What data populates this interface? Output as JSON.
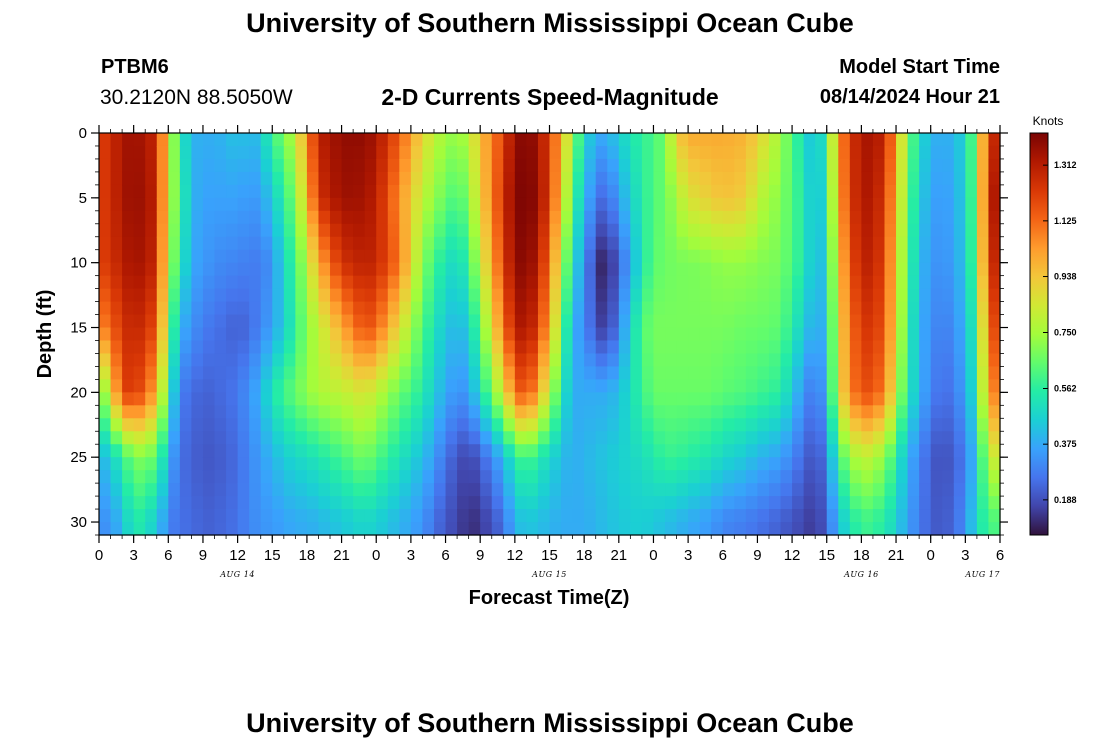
{
  "header": {
    "main_title": "University of Southern Mississippi Ocean Cube",
    "station_id": "PTBM6",
    "coordinates": "30.2120N  88.5050W",
    "chart_title": "2-D Currents Speed-Magnitude",
    "model_start_label": "Model Start Time",
    "model_start_value": "08/14/2024 Hour 21"
  },
  "footer": {
    "title": "University of Southern Mississippi Ocean Cube"
  },
  "chart_data": {
    "type": "heatmap",
    "title": "2-D Currents Speed-Magnitude",
    "xlabel": "Forecast Time(Z)",
    "ylabel": "Depth (ft)",
    "x_tick_labels": [
      "0",
      "3",
      "6",
      "9",
      "12",
      "15",
      "18",
      "21",
      "0",
      "3",
      "6",
      "9",
      "12",
      "15",
      "18",
      "21",
      "0",
      "3",
      "6",
      "9",
      "12",
      "15",
      "18",
      "21",
      "0",
      "3",
      "6"
    ],
    "x_date_labels": [
      {
        "text": "AUG 14",
        "tick_index": 4
      },
      {
        "text": "AUG 15",
        "tick_index": 13
      },
      {
        "text": "AUG 16",
        "tick_index": 22
      },
      {
        "text": "AUG 17",
        "tick_index": 25.5
      }
    ],
    "xlim_hours": [
      0,
      78
    ],
    "y_tick_labels": [
      "0",
      "5",
      "10",
      "15",
      "20",
      "25",
      "30"
    ],
    "ylim_ft": [
      0,
      31
    ],
    "y_inverted": true,
    "colorbar": {
      "units": "Knots",
      "ticks": [
        "0.188",
        "0.375",
        "0.562",
        "0.750",
        "0.938",
        "1.125",
        "1.312"
      ],
      "tick_values": [
        0.188,
        0.375,
        0.562,
        0.75,
        0.938,
        1.125,
        1.312
      ],
      "range": [
        0.07,
        1.42
      ],
      "colors": [
        "#30123b",
        "#4145ab",
        "#4675ed",
        "#39a2fc",
        "#1bcfd4",
        "#24eca6",
        "#61fc6c",
        "#a4fc3b",
        "#d1e834",
        "#f3c63a",
        "#fe9b2d",
        "#f36315",
        "#d93806",
        "#b11901",
        "#7a0403"
      ]
    },
    "speed_model_knots": {
      "description": "Approximate current speed (knots) by forecast hour and depth. Columns are depth (ft) at [0, 5, 10, 15, 20, 25, 30].",
      "depth_ft": [
        0,
        5,
        10,
        15,
        20,
        25,
        30
      ],
      "hours": [
        0,
        2,
        3,
        5,
        6,
        7,
        8,
        9,
        11,
        12,
        13,
        14,
        15,
        16,
        17,
        18,
        19,
        21,
        23,
        24,
        26,
        28,
        29,
        30,
        31,
        32,
        33,
        35,
        36,
        37,
        38,
        39,
        40,
        41,
        42,
        43,
        44,
        45,
        47,
        48,
        49,
        50,
        51,
        53,
        54,
        56,
        57,
        59,
        61,
        62,
        63,
        64,
        66,
        68,
        69,
        70,
        71,
        72,
        73,
        74,
        75,
        76,
        77,
        78
      ],
      "values": [
        [
          1.2,
          1.2,
          1.2,
          1.05,
          0.6,
          0.38,
          0.3
        ],
        [
          1.33,
          1.33,
          1.3,
          1.23,
          1.18,
          0.55,
          0.4
        ],
        [
          1.37,
          1.38,
          1.36,
          1.3,
          1.25,
          0.7,
          0.56
        ],
        [
          1.28,
          1.3,
          1.28,
          1.18,
          1.0,
          0.65,
          0.45
        ],
        [
          0.85,
          0.82,
          0.78,
          0.7,
          0.58,
          0.4,
          0.3
        ],
        [
          0.55,
          0.6,
          0.55,
          0.4,
          0.28,
          0.25,
          0.25
        ],
        [
          0.4,
          0.4,
          0.38,
          0.33,
          0.25,
          0.23,
          0.25
        ],
        [
          0.38,
          0.36,
          0.34,
          0.28,
          0.22,
          0.2,
          0.22
        ],
        [
          0.4,
          0.36,
          0.3,
          0.24,
          0.25,
          0.22,
          0.24
        ],
        [
          0.44,
          0.36,
          0.3,
          0.22,
          0.27,
          0.25,
          0.26
        ],
        [
          0.4,
          0.34,
          0.28,
          0.24,
          0.33,
          0.3,
          0.3
        ],
        [
          0.43,
          0.35,
          0.28,
          0.3,
          0.4,
          0.35,
          0.33
        ],
        [
          0.6,
          0.45,
          0.33,
          0.36,
          0.53,
          0.4,
          0.34
        ],
        [
          0.68,
          0.56,
          0.48,
          0.45,
          0.6,
          0.45,
          0.36
        ],
        [
          0.8,
          0.7,
          0.6,
          0.57,
          0.66,
          0.48,
          0.38
        ],
        [
          1.05,
          0.95,
          0.78,
          0.7,
          0.72,
          0.5,
          0.38
        ],
        [
          1.3,
          1.25,
          1.0,
          0.8,
          0.77,
          0.53,
          0.4
        ],
        [
          1.38,
          1.36,
          1.25,
          1.0,
          0.8,
          0.6,
          0.44
        ],
        [
          1.38,
          1.35,
          1.3,
          1.18,
          0.86,
          0.68,
          0.48
        ],
        [
          1.34,
          1.3,
          1.28,
          1.13,
          0.8,
          0.62,
          0.46
        ],
        [
          1.15,
          1.05,
          1.1,
          0.88,
          0.66,
          0.52,
          0.4
        ],
        [
          0.9,
          0.8,
          0.7,
          0.62,
          0.55,
          0.42,
          0.33
        ],
        [
          0.8,
          0.72,
          0.6,
          0.52,
          0.45,
          0.35,
          0.26
        ],
        [
          0.74,
          0.66,
          0.52,
          0.44,
          0.38,
          0.26,
          0.2
        ],
        [
          0.72,
          0.6,
          0.48,
          0.4,
          0.32,
          0.2,
          0.17
        ],
        [
          0.78,
          0.7,
          0.58,
          0.45,
          0.35,
          0.16,
          0.12
        ],
        [
          0.95,
          0.9,
          0.8,
          0.65,
          0.5,
          0.22,
          0.14
        ],
        [
          1.2,
          1.25,
          1.2,
          1.1,
          0.85,
          0.4,
          0.25
        ],
        [
          1.38,
          1.4,
          1.38,
          1.3,
          1.1,
          0.55,
          0.4
        ],
        [
          1.4,
          1.42,
          1.4,
          1.35,
          1.2,
          0.62,
          0.44
        ],
        [
          1.36,
          1.38,
          1.32,
          1.22,
          1.0,
          0.55,
          0.42
        ],
        [
          1.2,
          1.2,
          1.1,
          1.0,
          0.8,
          0.48,
          0.4
        ],
        [
          1.0,
          0.95,
          0.82,
          0.7,
          0.55,
          0.42,
          0.38
        ],
        [
          0.72,
          0.6,
          0.48,
          0.38,
          0.38,
          0.38,
          0.38
        ],
        [
          0.5,
          0.44,
          0.36,
          0.33,
          0.38,
          0.4,
          0.38
        ],
        [
          0.38,
          0.26,
          0.12,
          0.18,
          0.38,
          0.42,
          0.4
        ],
        [
          0.38,
          0.24,
          0.1,
          0.14,
          0.38,
          0.44,
          0.42
        ],
        [
          0.46,
          0.36,
          0.22,
          0.3,
          0.42,
          0.46,
          0.44
        ],
        [
          0.58,
          0.55,
          0.52,
          0.62,
          0.58,
          0.5,
          0.46
        ],
        [
          0.6,
          0.62,
          0.64,
          0.68,
          0.66,
          0.54,
          0.44
        ],
        [
          0.68,
          0.66,
          0.66,
          0.68,
          0.66,
          0.58,
          0.42
        ],
        [
          0.92,
          0.75,
          0.68,
          0.68,
          0.66,
          0.58,
          0.4
        ],
        [
          1.0,
          0.86,
          0.68,
          0.68,
          0.66,
          0.56,
          0.38
        ],
        [
          1.0,
          0.92,
          0.7,
          0.68,
          0.66,
          0.52,
          0.34
        ],
        [
          1.0,
          0.95,
          0.72,
          0.68,
          0.64,
          0.48,
          0.3
        ],
        [
          0.98,
          0.92,
          0.72,
          0.66,
          0.62,
          0.44,
          0.28
        ],
        [
          0.92,
          0.8,
          0.7,
          0.66,
          0.6,
          0.4,
          0.26
        ],
        [
          0.74,
          0.7,
          0.68,
          0.64,
          0.56,
          0.36,
          0.22
        ],
        [
          0.5,
          0.54,
          0.54,
          0.46,
          0.33,
          0.24,
          0.17
        ],
        [
          0.4,
          0.4,
          0.4,
          0.36,
          0.26,
          0.18,
          0.14
        ],
        [
          0.58,
          0.52,
          0.46,
          0.42,
          0.38,
          0.28,
          0.22
        ],
        [
          1.05,
          1.02,
          0.95,
          0.9,
          0.88,
          0.6,
          0.42
        ],
        [
          1.35,
          1.35,
          1.32,
          1.25,
          1.2,
          0.82,
          0.6
        ],
        [
          1.3,
          1.25,
          1.22,
          1.18,
          1.1,
          0.72,
          0.55
        ],
        [
          1.0,
          0.95,
          0.9,
          0.88,
          0.8,
          0.55,
          0.46
        ],
        [
          0.7,
          0.66,
          0.62,
          0.58,
          0.55,
          0.4,
          0.36
        ],
        [
          0.5,
          0.46,
          0.42,
          0.4,
          0.4,
          0.3,
          0.28
        ],
        [
          0.4,
          0.37,
          0.34,
          0.32,
          0.3,
          0.22,
          0.22
        ],
        [
          0.38,
          0.34,
          0.32,
          0.28,
          0.24,
          0.18,
          0.2
        ],
        [
          0.4,
          0.38,
          0.36,
          0.32,
          0.28,
          0.22,
          0.24
        ],
        [
          0.48,
          0.46,
          0.44,
          0.4,
          0.36,
          0.28,
          0.32
        ],
        [
          0.72,
          0.7,
          0.68,
          0.6,
          0.55,
          0.45,
          0.5
        ],
        [
          1.25,
          1.3,
          1.25,
          1.15,
          1.05,
          0.8,
          0.6
        ],
        [
          1.3,
          1.35,
          1.3,
          1.22,
          1.1,
          0.85,
          0.62
        ]
      ]
    }
  }
}
